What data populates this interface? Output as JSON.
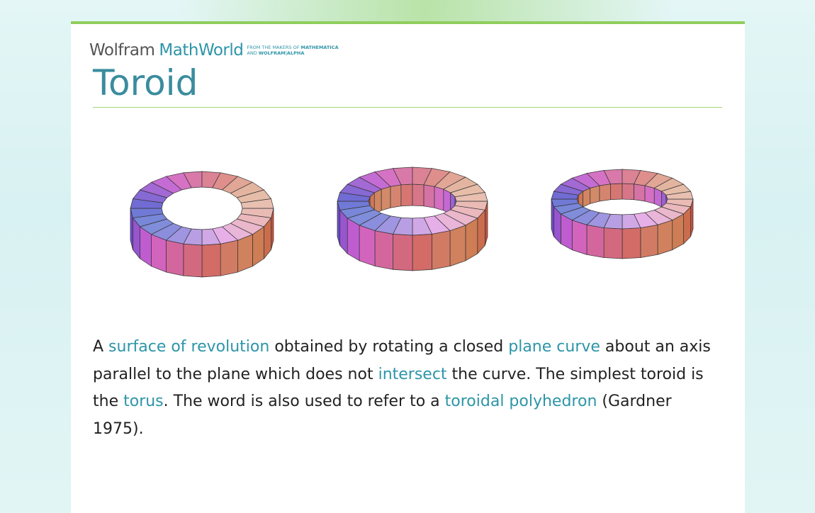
{
  "header": {
    "brand": "Wolfram",
    "product": "MathWorld",
    "tagline_line_1": "FROM THE MAKERS OF",
    "tagline_line_1_bold": "MATHEMATICA",
    "tagline_line_2": "AND",
    "tagline_line_2_bold": "WOLFRAM|ALPHA"
  },
  "title": "Toroid",
  "paragraph": [
    {
      "text": "A ",
      "link": false
    },
    {
      "text": "surface of revolution",
      "link": true
    },
    {
      "text": " obtained by rotating a closed ",
      "link": false
    },
    {
      "text": "plane curve",
      "link": true
    },
    {
      "text": " about an axis parallel to the plane which does not ",
      "link": false
    },
    {
      "text": "intersect",
      "link": true
    },
    {
      "text": " the curve. The simplest toroid is the ",
      "link": false
    },
    {
      "text": "torus",
      "link": true
    },
    {
      "text": ". The word is also used to refer to a ",
      "link": false
    },
    {
      "text": "toroidal polyhedron",
      "link": true
    },
    {
      "text": " (Gardner 1975).",
      "link": false
    }
  ]
}
